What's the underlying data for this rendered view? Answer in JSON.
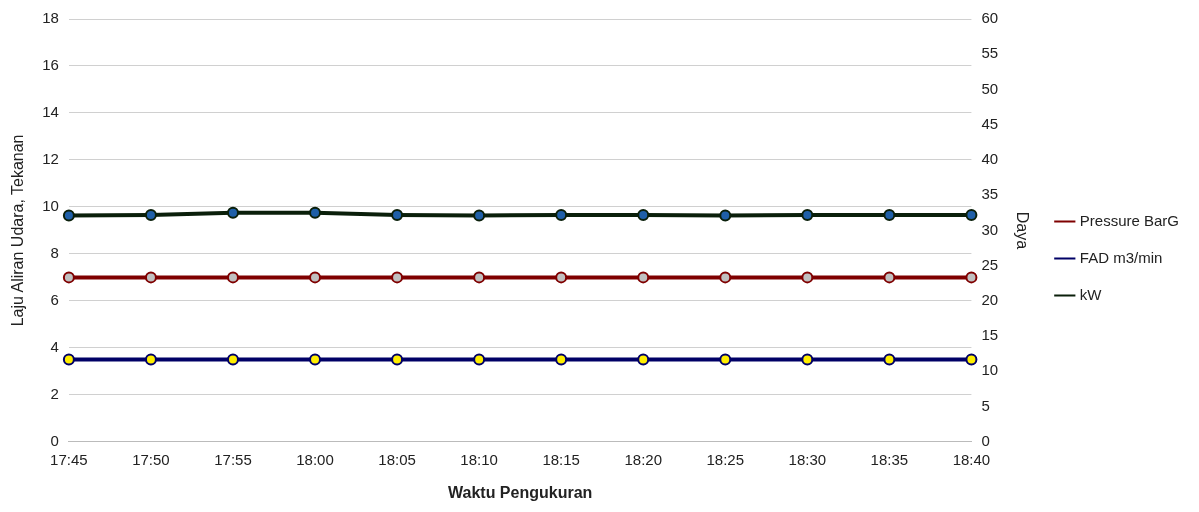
{
  "chart_data": {
    "type": "line",
    "xlabel": "Waktu Pengukuran",
    "ylabel": "Laju Aliran Udara, Tekanan",
    "y2label": "Daya",
    "categories": [
      "17:45",
      "17:50",
      "17:55",
      "18:00",
      "18:05",
      "18:10",
      "18:15",
      "18:20",
      "18:25",
      "18:30",
      "18:35",
      "18:40"
    ],
    "series": [
      {
        "name": "Pressure BarG",
        "color": "#7f0000",
        "values": [
          7,
          7,
          7,
          7,
          7,
          7,
          7,
          7,
          7,
          7,
          7,
          7
        ]
      },
      {
        "name": "FAD m3/min",
        "color": "#000066",
        "values": [
          3.5,
          3.5,
          3.5,
          3.5,
          3.5,
          3.5,
          3.5,
          3.5,
          3.5,
          3.5,
          3.5,
          3.5
        ]
      },
      {
        "name": "kW",
        "color": "#0a1f0a",
        "axis": "y2",
        "values": [
          32.1,
          32.2,
          32.5,
          32.5,
          32.2,
          32.1,
          32.2,
          32.2,
          32.1,
          32.2,
          32.2,
          32.2
        ]
      }
    ],
    "ylim": [
      0,
      18
    ],
    "yticks": [
      0,
      2,
      4,
      6,
      8,
      10,
      12,
      14,
      16,
      18
    ],
    "y2lim": [
      0,
      60
    ],
    "y2ticks": [
      0,
      5,
      10,
      15,
      20,
      25,
      30,
      35,
      40,
      45,
      50,
      55,
      60
    ],
    "grid": "y",
    "legend": "right",
    "marker": "circle",
    "line_style": "solid"
  }
}
